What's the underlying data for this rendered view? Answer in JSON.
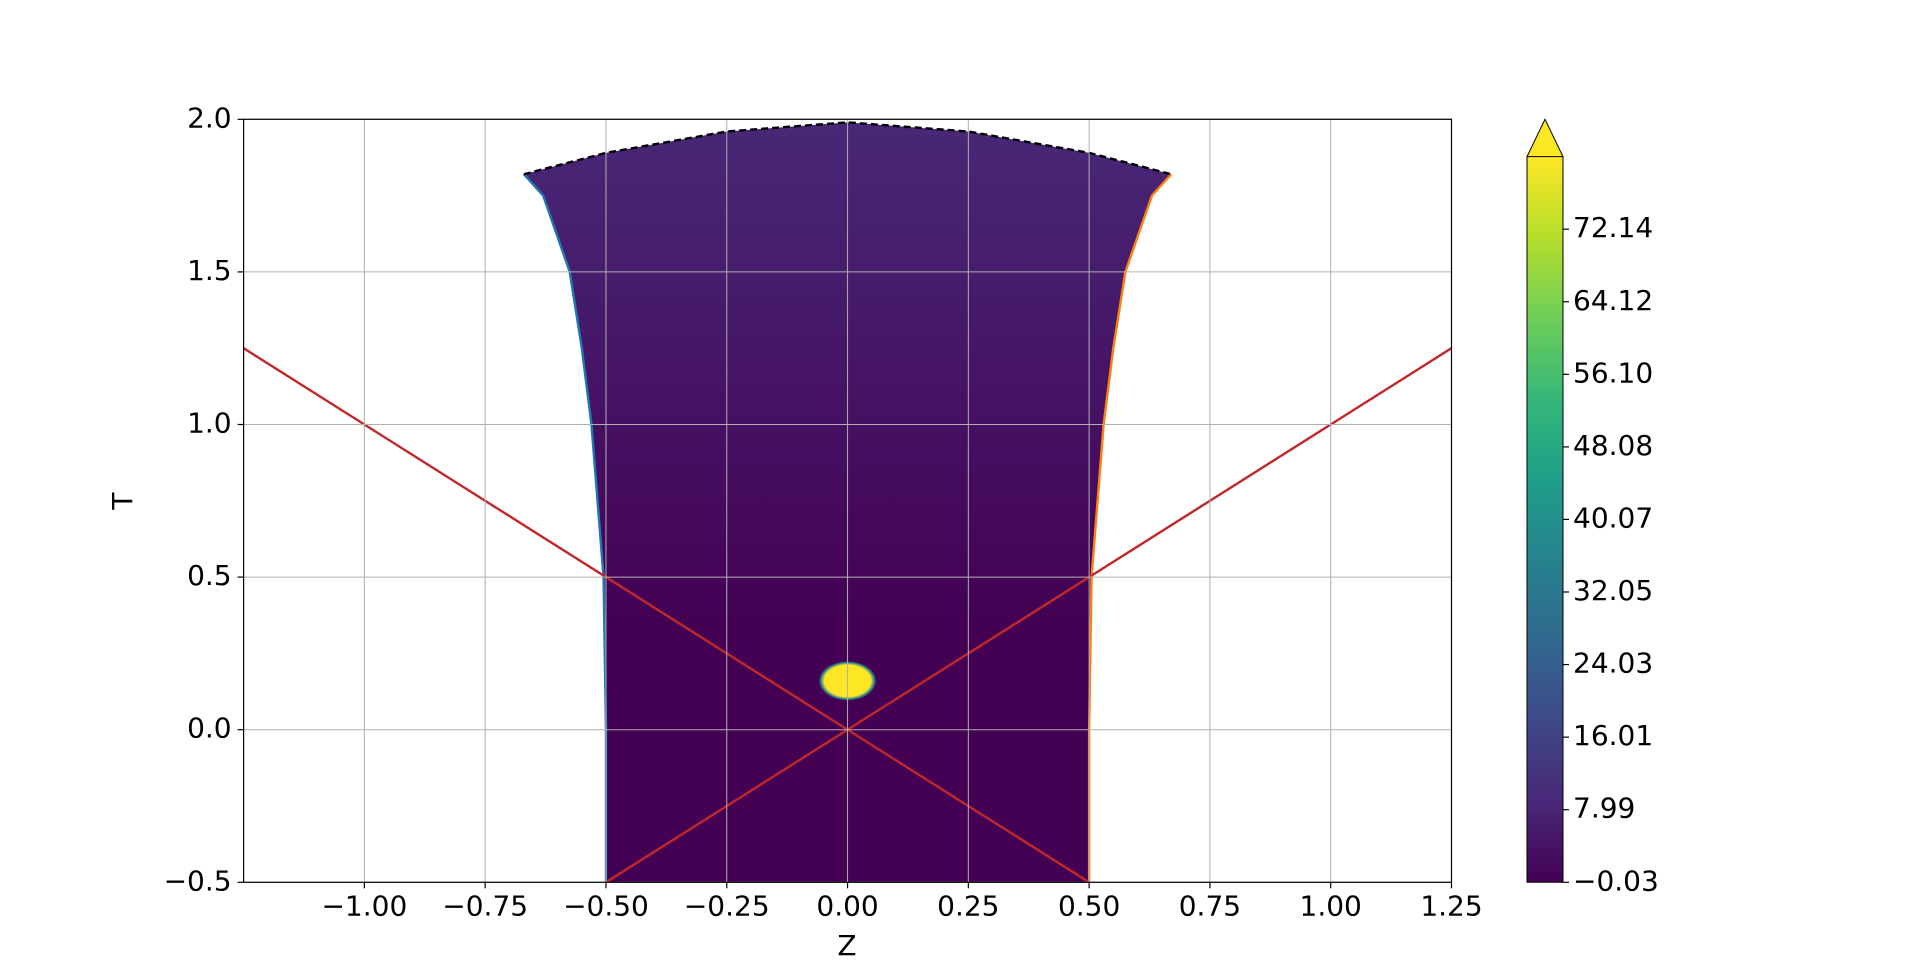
{
  "chart_data": {
    "type": "contourf",
    "xlabel": "Z",
    "ylabel": "T",
    "xlim": [
      -1.25,
      1.25
    ],
    "ylim": [
      -0.5,
      2.0
    ],
    "xticks": [
      {
        "value": -1,
        "label": "−1.00"
      },
      {
        "value": -0.75,
        "label": "−0.75"
      },
      {
        "value": -0.5,
        "label": "−0.50"
      },
      {
        "value": -0.25,
        "label": "−0.25"
      },
      {
        "value": 0,
        "label": "0.00"
      },
      0.25,
      {
        "value": 0.5,
        "label": "0.50"
      },
      0.75,
      {
        "value": 1,
        "label": "1.00"
      },
      1.25
    ],
    "yticks": [
      {
        "value": -0.5,
        "label": "−0.5"
      },
      {
        "value": 0,
        "label": "0.0"
      },
      0.5,
      {
        "value": 1,
        "label": "1.0"
      },
      1.5,
      {
        "value": 2,
        "label": "2.0"
      }
    ],
    "grid": true,
    "lines": [
      {
        "color": "#1f77b4",
        "style": "solid",
        "x": [
          -0.5,
          -0.5,
          -0.505,
          -0.53,
          -0.55,
          -0.575,
          -0.63,
          -0.67
        ],
        "values": [
          -0.5,
          0,
          0.5,
          1.0,
          1.25,
          1.5,
          1.75,
          1.82
        ]
      },
      {
        "color": "#ff7f0e",
        "style": "solid",
        "x": [
          0.5,
          0.5,
          0.505,
          0.53,
          0.55,
          0.575,
          0.63,
          0.67
        ],
        "values": [
          -0.5,
          0,
          0.5,
          1.0,
          1.25,
          1.5,
          1.75,
          1.82
        ]
      },
      {
        "color": "#000000",
        "style": "dashed",
        "x": [
          -0.67,
          -0.5,
          -0.25,
          0,
          0.25,
          0.5,
          0.67
        ],
        "values": [
          1.82,
          1.89,
          1.96,
          1.99,
          1.96,
          1.89,
          1.82
        ]
      },
      {
        "color": "#c0282a",
        "style": "solid",
        "x": [
          -1.25,
          0.5
        ],
        "values": [
          1.25,
          -0.5
        ]
      },
      {
        "color": "#c0282a",
        "style": "solid",
        "x": [
          -0.5,
          1.25
        ],
        "values": [
          -0.5,
          1.25
        ]
      }
    ],
    "field": {
      "bottom_value": 0,
      "top_value": 9,
      "peak": {
        "z": 0,
        "t": 0.16,
        "rz": 0.06,
        "rt": 0.065,
        "value": 80.16
      }
    },
    "colorbar": {
      "lim": [
        -0.03,
        80.16
      ],
      "extend": "max",
      "ticks": [
        {
          "value": -0.03,
          "label": "−0.03"
        },
        7.99,
        16.01,
        24.03,
        32.05,
        40.07,
        48.08,
        {
          "value": 56.1,
          "label": "56.10"
        },
        64.12,
        72.14
      ],
      "colormap": [
        "#440154",
        "#482878",
        "#3e4989",
        "#31688e",
        "#26828e",
        "#1f9e89",
        "#35b779",
        "#6ece58",
        "#b5de2b",
        "#fde725"
      ]
    }
  }
}
